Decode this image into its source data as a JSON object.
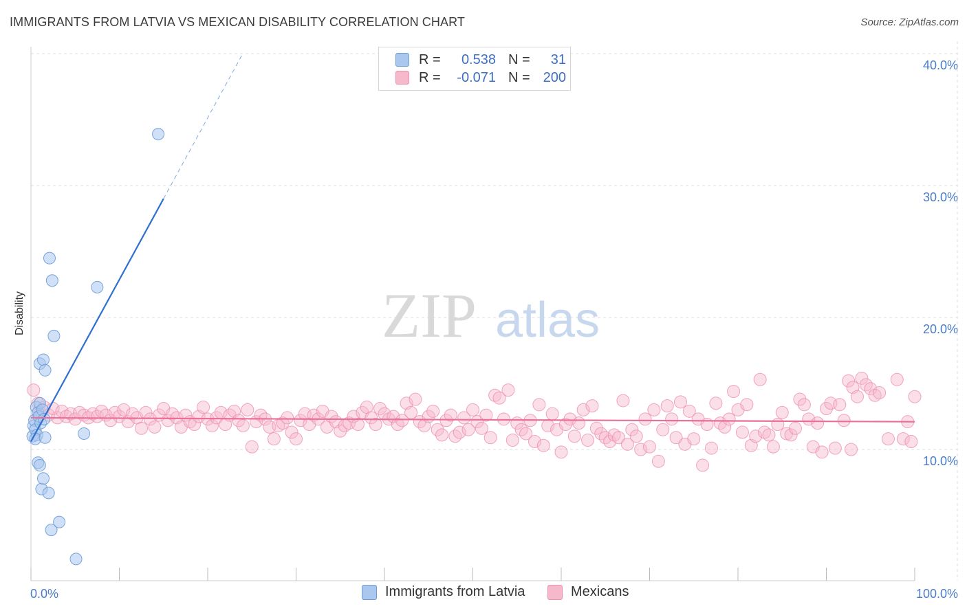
{
  "title": "IMMIGRANTS FROM LATVIA VS MEXICAN DISABILITY CORRELATION CHART",
  "source": "Source: ZipAtlas.com",
  "watermark": {
    "zip": "ZIP",
    "atlas": "atlas"
  },
  "legend": {
    "rows": [
      {
        "r_label": "R =",
        "r_value": "0.538",
        "n_label": "N =",
        "n_value": "31"
      },
      {
        "r_label": "R =",
        "r_value": "-0.071",
        "n_label": "N =",
        "n_value": "200"
      }
    ]
  },
  "bottom_legend": [
    "Immigrants from Latvia",
    "Mexicans"
  ],
  "colors": {
    "blue_fill": "#a9c7ef",
    "blue_stroke": "#6b9bd8",
    "blue_line": "#2f6fcf",
    "pink_fill": "#f6b9cc",
    "pink_stroke": "#ee8fae",
    "pink_line": "#e8709a",
    "grid": "#dcdcdc",
    "tick": "#4a7cc9"
  },
  "chart_data": {
    "type": "scatter",
    "title": "IMMIGRANTS FROM LATVIA VS MEXICAN DISABILITY CORRELATION CHART",
    "xlabel": "",
    "ylabel": "Disability",
    "xlim": [
      0,
      100
    ],
    "ylim": [
      0,
      42
    ],
    "x_ticks": [
      0,
      10,
      20,
      30,
      40,
      50,
      60,
      70,
      80,
      90,
      100
    ],
    "x_tick_labels": {
      "0": "0.0%",
      "100": "100.0%"
    },
    "y_ticks": [
      10,
      20,
      30,
      40
    ],
    "y_tick_labels": [
      "10.0%",
      "20.0%",
      "30.0%",
      "40.0%"
    ],
    "grid": true,
    "legend_position": "top-center",
    "series": [
      {
        "name": "Immigrants from Latvia",
        "R": 0.538,
        "N": 31,
        "trend": {
          "x0": 0.0,
          "y0": 10.6,
          "x1": 15.0,
          "y1": 29.0,
          "x_dash_end": 24.0
        },
        "points": [
          [
            0.2,
            11.0
          ],
          [
            0.3,
            11.8
          ],
          [
            0.4,
            12.2
          ],
          [
            0.5,
            11.5
          ],
          [
            0.6,
            13.2
          ],
          [
            0.7,
            11.1
          ],
          [
            0.8,
            12.8
          ],
          [
            0.9,
            12.5
          ],
          [
            1.0,
            13.5
          ],
          [
            1.1,
            12.0
          ],
          [
            0.5,
            10.8
          ],
          [
            0.8,
            9.0
          ],
          [
            1.0,
            8.8
          ],
          [
            1.2,
            7.0
          ],
          [
            1.4,
            7.8
          ],
          [
            1.0,
            16.5
          ],
          [
            1.4,
            16.8
          ],
          [
            1.6,
            16.0
          ],
          [
            2.1,
            24.5
          ],
          [
            2.4,
            22.8
          ],
          [
            2.6,
            18.6
          ],
          [
            7.5,
            22.3
          ],
          [
            14.4,
            33.9
          ],
          [
            1.3,
            13.0
          ],
          [
            1.6,
            10.9
          ],
          [
            2.0,
            6.7
          ],
          [
            2.3,
            3.9
          ],
          [
            3.2,
            4.5
          ],
          [
            5.1,
            1.7
          ],
          [
            6.0,
            11.2
          ],
          [
            1.5,
            12.3
          ]
        ]
      },
      {
        "name": "Mexicans",
        "R": -0.071,
        "N": 200,
        "trend": {
          "x0": 0.0,
          "y0": 12.4,
          "x1": 100.0,
          "y1": 12.1
        },
        "points": [
          [
            0.3,
            14.5
          ],
          [
            0.8,
            13.5
          ],
          [
            1.0,
            12.8
          ],
          [
            1.5,
            13.2
          ],
          [
            2.0,
            12.6
          ],
          [
            2.5,
            13.1
          ],
          [
            3.0,
            12.4
          ],
          [
            3.5,
            12.9
          ],
          [
            4.0,
            12.5
          ],
          [
            4.5,
            12.7
          ],
          [
            5.0,
            12.3
          ],
          [
            5.5,
            12.8
          ],
          [
            6.0,
            12.6
          ],
          [
            6.5,
            12.4
          ],
          [
            7.0,
            12.7
          ],
          [
            7.5,
            12.5
          ],
          [
            8.0,
            12.9
          ],
          [
            8.5,
            12.6
          ],
          [
            9.0,
            12.2
          ],
          [
            9.5,
            12.8
          ],
          [
            10.0,
            12.5
          ],
          [
            10.5,
            13.0
          ],
          [
            11.0,
            12.1
          ],
          [
            11.5,
            12.7
          ],
          [
            12.0,
            12.4
          ],
          [
            12.5,
            11.6
          ],
          [
            13.0,
            12.8
          ],
          [
            13.5,
            12.3
          ],
          [
            14.0,
            11.7
          ],
          [
            14.5,
            12.6
          ],
          [
            15.0,
            13.1
          ],
          [
            15.5,
            12.2
          ],
          [
            16.0,
            12.7
          ],
          [
            16.5,
            12.4
          ],
          [
            17.0,
            11.7
          ],
          [
            17.5,
            12.6
          ],
          [
            18.0,
            12.1
          ],
          [
            18.5,
            11.9
          ],
          [
            19.0,
            12.5
          ],
          [
            19.5,
            13.2
          ],
          [
            20.0,
            12.3
          ],
          [
            20.5,
            11.8
          ],
          [
            21.0,
            12.4
          ],
          [
            21.5,
            12.8
          ],
          [
            22.0,
            11.9
          ],
          [
            22.5,
            12.6
          ],
          [
            23.0,
            12.9
          ],
          [
            23.5,
            12.2
          ],
          [
            24.0,
            11.8
          ],
          [
            24.5,
            13.0
          ],
          [
            25.0,
            10.2
          ],
          [
            25.5,
            12.1
          ],
          [
            26.0,
            12.6
          ],
          [
            26.5,
            12.3
          ],
          [
            27.0,
            11.7
          ],
          [
            27.5,
            10.8
          ],
          [
            28.0,
            11.8
          ],
          [
            28.5,
            12.0
          ],
          [
            29.0,
            12.4
          ],
          [
            29.5,
            11.3
          ],
          [
            30.0,
            10.8
          ],
          [
            30.5,
            12.2
          ],
          [
            31.0,
            12.7
          ],
          [
            31.5,
            11.9
          ],
          [
            32.0,
            12.6
          ],
          [
            32.5,
            12.3
          ],
          [
            33.0,
            12.9
          ],
          [
            33.5,
            11.7
          ],
          [
            34.0,
            12.5
          ],
          [
            34.5,
            12.1
          ],
          [
            35.0,
            11.4
          ],
          [
            35.5,
            11.8
          ],
          [
            36.0,
            12.0
          ],
          [
            36.5,
            12.5
          ],
          [
            37.0,
            11.9
          ],
          [
            37.5,
            12.8
          ],
          [
            38.0,
            13.2
          ],
          [
            38.5,
            12.4
          ],
          [
            39.0,
            11.9
          ],
          [
            39.5,
            13.1
          ],
          [
            40.0,
            12.7
          ],
          [
            40.5,
            12.3
          ],
          [
            41.0,
            12.5
          ],
          [
            41.5,
            11.9
          ],
          [
            42.0,
            12.2
          ],
          [
            42.5,
            13.5
          ],
          [
            43.0,
            12.8
          ],
          [
            43.5,
            13.8
          ],
          [
            44.0,
            12.1
          ],
          [
            44.5,
            11.8
          ],
          [
            45.0,
            12.5
          ],
          [
            45.5,
            12.9
          ],
          [
            46.0,
            11.5
          ],
          [
            46.5,
            11.1
          ],
          [
            47.0,
            12.2
          ],
          [
            47.5,
            12.6
          ],
          [
            48.0,
            11.0
          ],
          [
            48.5,
            11.3
          ],
          [
            49.0,
            12.4
          ],
          [
            49.5,
            11.5
          ],
          [
            50.0,
            13.0
          ],
          [
            50.5,
            12.1
          ],
          [
            51.0,
            11.6
          ],
          [
            51.5,
            12.6
          ],
          [
            52.0,
            10.9
          ],
          [
            52.5,
            14.1
          ],
          [
            53.0,
            13.9
          ],
          [
            53.5,
            12.3
          ],
          [
            54.0,
            14.5
          ],
          [
            54.5,
            10.7
          ],
          [
            55.0,
            12.0
          ],
          [
            55.5,
            11.5
          ],
          [
            56.0,
            11.2
          ],
          [
            56.5,
            12.2
          ],
          [
            57.0,
            10.6
          ],
          [
            57.5,
            13.4
          ],
          [
            58.0,
            10.3
          ],
          [
            58.5,
            11.8
          ],
          [
            59.0,
            12.7
          ],
          [
            59.5,
            11.5
          ],
          [
            60.0,
            9.8
          ],
          [
            60.5,
            11.9
          ],
          [
            61.0,
            12.3
          ],
          [
            61.5,
            11.0
          ],
          [
            62.0,
            12.0
          ],
          [
            62.5,
            13.0
          ],
          [
            63.0,
            10.7
          ],
          [
            63.5,
            13.3
          ],
          [
            64.0,
            11.6
          ],
          [
            64.5,
            11.2
          ],
          [
            65.0,
            10.9
          ],
          [
            65.5,
            10.6
          ],
          [
            66.0,
            11.1
          ],
          [
            66.5,
            10.9
          ],
          [
            67.0,
            13.7
          ],
          [
            67.5,
            10.4
          ],
          [
            68.0,
            11.5
          ],
          [
            68.5,
            11.0
          ],
          [
            69.0,
            10.0
          ],
          [
            69.5,
            12.3
          ],
          [
            70.0,
            10.2
          ],
          [
            70.5,
            13.0
          ],
          [
            71.0,
            9.1
          ],
          [
            71.5,
            11.5
          ],
          [
            72.0,
            13.3
          ],
          [
            72.5,
            12.3
          ],
          [
            73.0,
            10.9
          ],
          [
            73.5,
            13.6
          ],
          [
            74.0,
            10.4
          ],
          [
            74.5,
            12.9
          ],
          [
            75.0,
            10.8
          ],
          [
            75.5,
            12.3
          ],
          [
            76.0,
            8.8
          ],
          [
            76.5,
            11.9
          ],
          [
            77.0,
            10.1
          ],
          [
            77.5,
            13.5
          ],
          [
            78.0,
            12.0
          ],
          [
            78.5,
            11.7
          ],
          [
            79.0,
            12.3
          ],
          [
            79.5,
            14.4
          ],
          [
            80.0,
            13.0
          ],
          [
            80.5,
            11.3
          ],
          [
            81.0,
            13.4
          ],
          [
            81.5,
            10.3
          ],
          [
            82.0,
            11.0
          ],
          [
            82.5,
            15.3
          ],
          [
            83.0,
            11.3
          ],
          [
            83.5,
            11.1
          ],
          [
            84.0,
            10.2
          ],
          [
            84.5,
            11.9
          ],
          [
            85.0,
            12.8
          ],
          [
            85.5,
            11.2
          ],
          [
            86.0,
            11.1
          ],
          [
            86.5,
            11.6
          ],
          [
            87.0,
            13.8
          ],
          [
            87.5,
            13.4
          ],
          [
            88.0,
            12.3
          ],
          [
            88.5,
            10.2
          ],
          [
            89.0,
            12.0
          ],
          [
            89.5,
            9.8
          ],
          [
            90.0,
            13.1
          ],
          [
            90.5,
            13.5
          ],
          [
            91.0,
            10.1
          ],
          [
            91.5,
            13.4
          ],
          [
            92.0,
            12.2
          ],
          [
            92.5,
            15.2
          ],
          [
            93.0,
            14.7
          ],
          [
            93.5,
            14.0
          ],
          [
            94.0,
            15.4
          ],
          [
            94.5,
            14.9
          ],
          [
            95.0,
            14.6
          ],
          [
            95.5,
            14.1
          ],
          [
            96.0,
            14.3
          ],
          [
            97.0,
            10.8
          ],
          [
            98.0,
            15.3
          ],
          [
            98.7,
            10.8
          ],
          [
            99.2,
            12.1
          ],
          [
            99.6,
            10.6
          ],
          [
            100.0,
            14.0
          ],
          [
            92.8,
            10.0
          ]
        ]
      }
    ]
  }
}
